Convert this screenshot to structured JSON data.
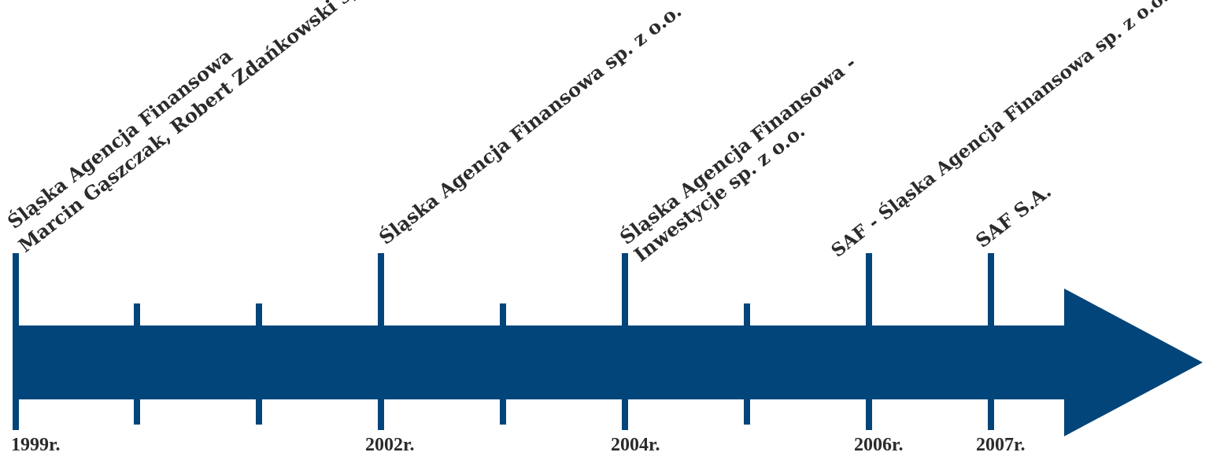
{
  "accent_color": "#02457a",
  "text_color": "#2b2b2b",
  "events": [
    {
      "year": "1999r.",
      "lines": [
        "Śląska Agencja Finansowa",
        "Marcin Gąszczak, Robert Zdańkowski sp.j."
      ]
    },
    {
      "year": "2002r.",
      "lines": [
        "Śląska Agencja Finansowa sp. z o.o."
      ]
    },
    {
      "year": "2004r.",
      "lines": [
        "Śląska Agencja Finansowa -",
        "Inwestycje sp. z o.o."
      ]
    },
    {
      "year": "2006r.",
      "lines": [
        "SAF - Śląska Agencja Finansowa sp. z o.o."
      ]
    },
    {
      "year": "2007r.",
      "lines": [
        "SAF S.A."
      ]
    }
  ]
}
